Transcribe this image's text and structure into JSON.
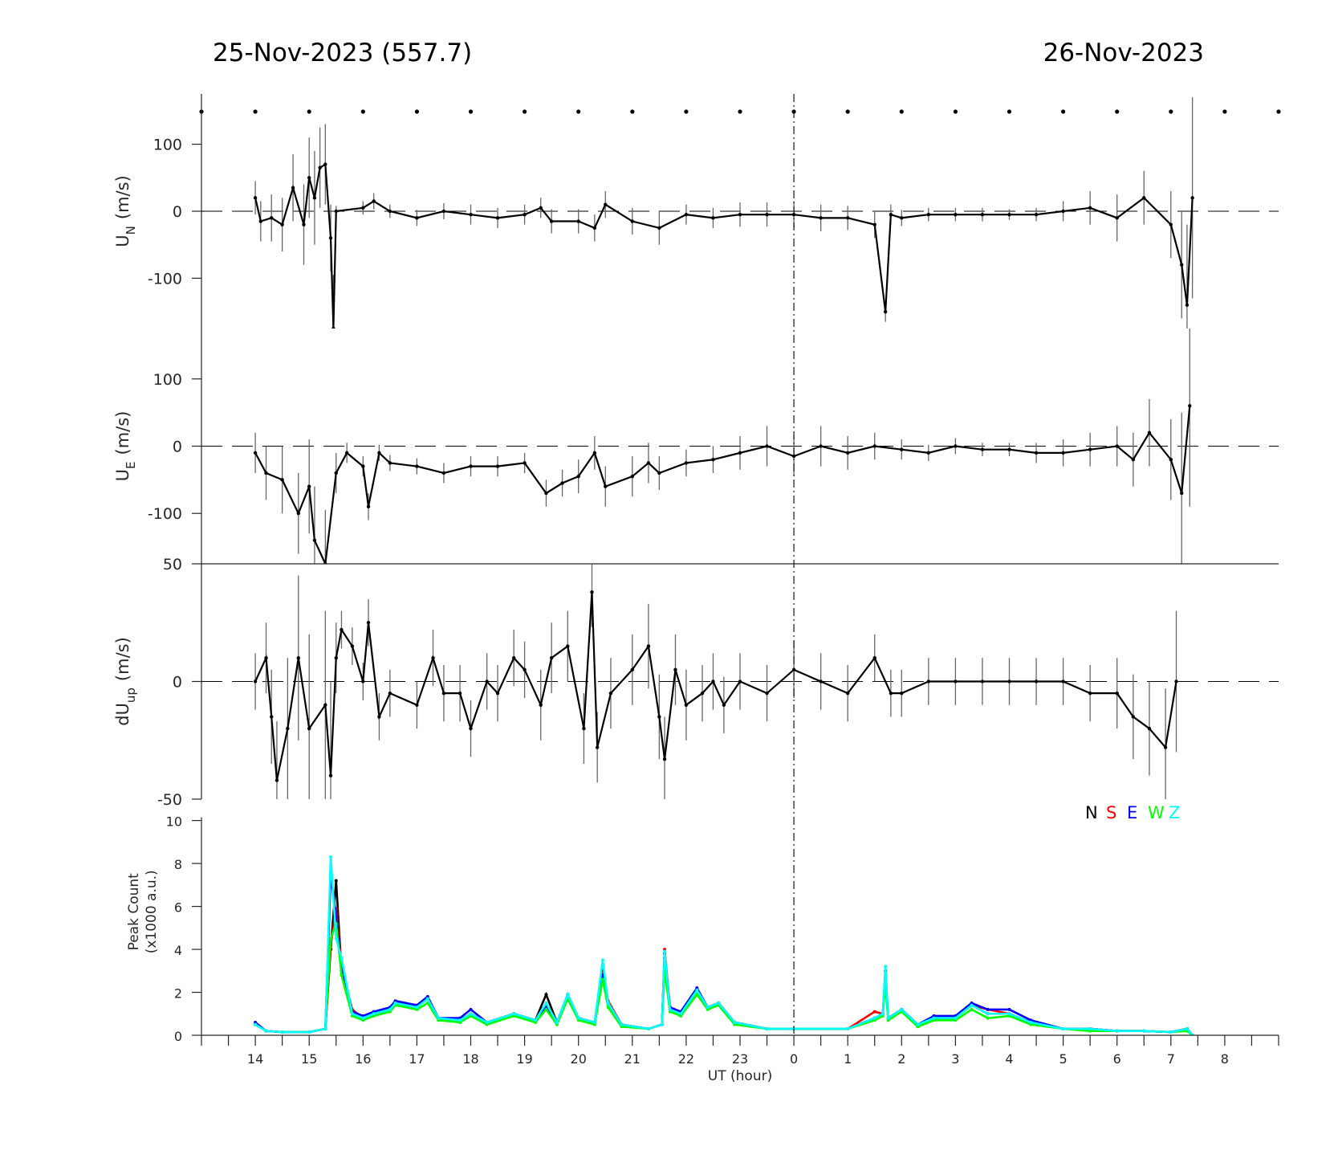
{
  "titles": {
    "left": "25-Nov-2023 (557.7)",
    "right": "26-Nov-2023"
  },
  "chart_data": [
    {
      "type": "line",
      "name": "UN",
      "ylabel": "U",
      "ylabel_sub": "N",
      "ylabel_unit": "(m/s)",
      "ylim": [
        -175,
        175
      ],
      "yticks": [
        100,
        0,
        -100
      ],
      "x": [
        14.0,
        14.1,
        14.3,
        14.5,
        14.7,
        14.9,
        15.0,
        15.1,
        15.2,
        15.3,
        15.4,
        15.45,
        15.5,
        16.0,
        16.2,
        16.5,
        17.0,
        17.5,
        18.0,
        18.5,
        19.0,
        19.3,
        19.5,
        20.0,
        20.3,
        20.5,
        21.0,
        21.5,
        22.0,
        22.5,
        23.0,
        23.5,
        24.0,
        24.5,
        25.0,
        25.5,
        25.7,
        25.8,
        26.0,
        26.5,
        27.0,
        27.5,
        28.0,
        28.5,
        29.0,
        29.5,
        30.0,
        30.5,
        31.0,
        31.2,
        31.3,
        31.4
      ],
      "y": [
        20,
        -15,
        -10,
        -20,
        35,
        -20,
        50,
        20,
        65,
        70,
        -40,
        -175,
        0,
        5,
        15,
        0,
        -10,
        0,
        -5,
        -10,
        -5,
        5,
        -15,
        -15,
        -25,
        10,
        -15,
        -25,
        -5,
        -10,
        -5,
        -5,
        -5,
        -10,
        -10,
        -20,
        -150,
        -5,
        -10,
        -5,
        -5,
        -5,
        -5,
        -5,
        0,
        5,
        -10,
        20,
        -20,
        -80,
        -140,
        20
      ],
      "err": [
        25,
        30,
        35,
        40,
        50,
        60,
        60,
        70,
        60,
        60,
        50,
        80,
        8,
        10,
        12,
        10,
        12,
        12,
        15,
        15,
        15,
        15,
        18,
        18,
        20,
        20,
        20,
        25,
        15,
        15,
        18,
        18,
        20,
        20,
        18,
        20,
        15,
        15,
        12,
        10,
        10,
        10,
        8,
        10,
        15,
        25,
        35,
        40,
        50,
        80,
        120,
        150
      ]
    },
    {
      "type": "line",
      "name": "UE",
      "ylabel": "U",
      "ylabel_sub": "E",
      "ylabel_unit": "(m/s)",
      "ylim": [
        -175,
        175
      ],
      "yticks": [
        100,
        0,
        -100
      ],
      "x": [
        14.0,
        14.2,
        14.5,
        14.8,
        15.0,
        15.1,
        15.3,
        15.5,
        15.7,
        16.0,
        16.1,
        16.3,
        16.5,
        17.0,
        17.5,
        18.0,
        18.5,
        19.0,
        19.4,
        19.7,
        20.0,
        20.3,
        20.5,
        21.0,
        21.3,
        21.5,
        22.0,
        22.5,
        23.0,
        23.5,
        24.0,
        24.5,
        25.0,
        25.5,
        26.0,
        26.5,
        27.0,
        27.5,
        28.0,
        28.5,
        29.0,
        29.5,
        30.0,
        30.3,
        30.6,
        31.0,
        31.2,
        31.35
      ],
      "y": [
        -10,
        -40,
        -50,
        -100,
        -60,
        -140,
        -175,
        -40,
        -10,
        -30,
        -90,
        -10,
        -25,
        -30,
        -40,
        -30,
        -30,
        -25,
        -70,
        -55,
        -45,
        -10,
        -60,
        -45,
        -25,
        -40,
        -25,
        -20,
        -10,
        0,
        -15,
        0,
        -10,
        0,
        -5,
        -10,
        0,
        -5,
        -5,
        -10,
        -10,
        -5,
        0,
        -20,
        20,
        -20,
        -70,
        60
      ],
      "err": [
        30,
        40,
        50,
        60,
        70,
        80,
        80,
        30,
        15,
        15,
        20,
        12,
        12,
        12,
        15,
        15,
        15,
        15,
        20,
        20,
        25,
        25,
        30,
        30,
        30,
        25,
        20,
        20,
        25,
        30,
        30,
        30,
        25,
        20,
        15,
        12,
        12,
        10,
        10,
        15,
        20,
        25,
        30,
        40,
        50,
        60,
        120,
        150
      ]
    },
    {
      "type": "line",
      "name": "dUup",
      "ylabel": "dU",
      "ylabel_sub": "up",
      "ylabel_unit": "(m/s)",
      "ylim": [
        -50,
        50
      ],
      "yticks": [
        50,
        0,
        -50
      ],
      "x": [
        14.0,
        14.2,
        14.3,
        14.4,
        14.6,
        14.8,
        15.0,
        15.3,
        15.4,
        15.5,
        15.6,
        15.8,
        16.0,
        16.1,
        16.3,
        16.5,
        17.0,
        17.3,
        17.5,
        17.8,
        18.0,
        18.3,
        18.5,
        18.8,
        19.0,
        19.3,
        19.5,
        19.8,
        20.1,
        20.25,
        20.35,
        20.6,
        21.0,
        21.3,
        21.5,
        21.6,
        21.8,
        22.0,
        22.3,
        22.5,
        22.7,
        23.0,
        23.5,
        24.0,
        24.5,
        25.0,
        25.5,
        25.8,
        26.0,
        26.5,
        27.0,
        27.5,
        28.0,
        28.5,
        29.0,
        29.5,
        30.0,
        30.3,
        30.6,
        30.9,
        31.1
      ],
      "y": [
        0,
        10,
        -15,
        -42,
        -20,
        10,
        -20,
        -10,
        -40,
        10,
        22,
        15,
        0,
        25,
        -15,
        -5,
        -10,
        10,
        -5,
        -5,
        -20,
        0,
        -5,
        10,
        5,
        -10,
        10,
        15,
        -20,
        38,
        -28,
        -5,
        5,
        15,
        -15,
        -33,
        5,
        -10,
        -5,
        0,
        -10,
        0,
        -5,
        5,
        0,
        -5,
        10,
        -5,
        -5,
        0,
        0,
        0,
        0,
        0,
        0,
        -5,
        -5,
        -15,
        -20,
        -28,
        0
      ],
      "err": [
        12,
        15,
        20,
        25,
        30,
        35,
        40,
        40,
        40,
        15,
        8,
        8,
        8,
        10,
        10,
        10,
        10,
        12,
        12,
        12,
        12,
        12,
        12,
        12,
        12,
        15,
        15,
        15,
        15,
        15,
        15,
        15,
        15,
        18,
        18,
        18,
        15,
        15,
        12,
        12,
        12,
        12,
        12,
        12,
        12,
        12,
        10,
        10,
        10,
        10,
        10,
        10,
        10,
        10,
        10,
        12,
        15,
        18,
        20,
        25,
        30
      ]
    },
    {
      "type": "line",
      "name": "peak-count",
      "ylabel": "Peak Count",
      "ylabel2": "(x1000 a.u.)",
      "ylim": [
        0,
        10
      ],
      "yticks": [
        0,
        2,
        4,
        6,
        8,
        10
      ],
      "xlabel": "UT (hour)",
      "xlim": [
        13,
        33
      ],
      "xtick_labels": [
        "14",
        "15",
        "16",
        "17",
        "18",
        "19",
        "20",
        "21",
        "22",
        "23",
        "0",
        "1",
        "2",
        "3",
        "4",
        "5",
        "6",
        "7",
        "8"
      ],
      "x": [
        14,
        14.2,
        14.5,
        15,
        15.3,
        15.4,
        15.5,
        15.6,
        15.8,
        16,
        16.2,
        16.5,
        16.6,
        17,
        17.2,
        17.4,
        17.8,
        18,
        18.3,
        18.8,
        19.2,
        19.4,
        19.6,
        19.8,
        20,
        20.3,
        20.45,
        20.55,
        20.8,
        21.3,
        21.55,
        21.6,
        21.7,
        21.9,
        22.2,
        22.4,
        22.6,
        22.9,
        23.5,
        24,
        25,
        25.5,
        25.65,
        25.7,
        25.75,
        26,
        26.3,
        26.6,
        27,
        27.3,
        27.6,
        28,
        28.4,
        29,
        29.5,
        30,
        30.5,
        31,
        31.3,
        31.4
      ],
      "series": [
        {
          "name": "N",
          "color": "#000000",
          "values": [
            0.5,
            0.2,
            0.15,
            0.15,
            0.3,
            4.0,
            7.2,
            3.0,
            1.0,
            0.8,
            1.0,
            1.2,
            1.5,
            1.3,
            1.7,
            0.8,
            0.7,
            1.0,
            0.6,
            1.0,
            0.7,
            1.9,
            0.6,
            1.8,
            0.8,
            0.6,
            3.3,
            1.5,
            0.5,
            0.3,
            0.5,
            3.8,
            1.2,
            1.0,
            2.1,
            1.3,
            1.5,
            0.6,
            0.3,
            0.3,
            0.3,
            0.8,
            1.0,
            3.0,
            0.8,
            1.2,
            0.5,
            0.8,
            0.8,
            1.4,
            1.0,
            1.0,
            0.6,
            0.3,
            0.3,
            0.2,
            0.2,
            0.15,
            0.3,
            0.0
          ]
        },
        {
          "name": "S",
          "color": "#ff0000",
          "values": [
            0.5,
            0.2,
            0.15,
            0.15,
            0.3,
            4.2,
            5.9,
            3.2,
            1.2,
            0.8,
            1.0,
            1.2,
            1.5,
            1.3,
            1.7,
            0.8,
            0.7,
            1.0,
            0.6,
            1.0,
            0.7,
            1.4,
            0.6,
            1.8,
            0.8,
            0.6,
            2.9,
            1.6,
            0.5,
            0.3,
            0.5,
            4.0,
            1.3,
            1.0,
            2.1,
            1.3,
            1.5,
            0.6,
            0.3,
            0.3,
            0.3,
            1.1,
            1.0,
            2.6,
            0.8,
            1.2,
            0.5,
            0.8,
            0.8,
            1.4,
            1.2,
            1.0,
            0.6,
            0.3,
            0.3,
            0.2,
            0.2,
            0.15,
            0.3,
            0.0
          ]
        },
        {
          "name": "E",
          "color": "#0000ff",
          "values": [
            0.6,
            0.2,
            0.15,
            0.15,
            0.3,
            7.5,
            5.5,
            3.0,
            1.1,
            0.9,
            1.1,
            1.3,
            1.6,
            1.4,
            1.8,
            0.8,
            0.8,
            1.2,
            0.6,
            1.0,
            0.7,
            1.3,
            0.6,
            1.9,
            0.8,
            0.6,
            2.8,
            1.5,
            0.5,
            0.3,
            0.5,
            3.6,
            1.3,
            1.1,
            2.2,
            1.3,
            1.5,
            0.6,
            0.3,
            0.3,
            0.3,
            0.8,
            1.0,
            2.7,
            0.8,
            1.2,
            0.5,
            0.9,
            0.9,
            1.5,
            1.2,
            1.2,
            0.7,
            0.3,
            0.3,
            0.2,
            0.2,
            0.15,
            0.3,
            0.0
          ]
        },
        {
          "name": "W",
          "color": "#00ff00",
          "values": [
            0.5,
            0.2,
            0.15,
            0.15,
            0.3,
            4.5,
            5.2,
            2.8,
            0.9,
            0.7,
            0.9,
            1.1,
            1.4,
            1.2,
            1.5,
            0.7,
            0.6,
            0.9,
            0.5,
            0.9,
            0.6,
            1.2,
            0.5,
            1.7,
            0.7,
            0.5,
            2.6,
            1.3,
            0.4,
            0.3,
            0.5,
            3.0,
            1.1,
            0.9,
            1.9,
            1.2,
            1.4,
            0.5,
            0.3,
            0.3,
            0.3,
            0.7,
            0.9,
            2.4,
            0.7,
            1.1,
            0.4,
            0.7,
            0.7,
            1.2,
            0.8,
            0.9,
            0.5,
            0.3,
            0.2,
            0.2,
            0.2,
            0.15,
            0.2,
            0.0
          ]
        },
        {
          "name": "Z",
          "color": "#00ffff",
          "values": [
            0.5,
            0.2,
            0.15,
            0.15,
            0.3,
            8.3,
            4.5,
            3.6,
            1.0,
            0.8,
            1.0,
            1.2,
            1.5,
            1.3,
            1.7,
            0.8,
            0.7,
            1.0,
            0.6,
            1.0,
            0.7,
            1.5,
            0.6,
            1.9,
            0.8,
            0.6,
            3.5,
            1.5,
            0.5,
            0.3,
            0.5,
            3.9,
            1.2,
            1.0,
            2.1,
            1.3,
            1.5,
            0.6,
            0.3,
            0.3,
            0.3,
            0.8,
            1.0,
            3.2,
            0.8,
            1.2,
            0.5,
            0.8,
            0.8,
            1.4,
            1.0,
            1.0,
            0.6,
            0.3,
            0.3,
            0.2,
            0.2,
            0.15,
            0.3,
            0.0
          ]
        }
      ]
    }
  ]
}
